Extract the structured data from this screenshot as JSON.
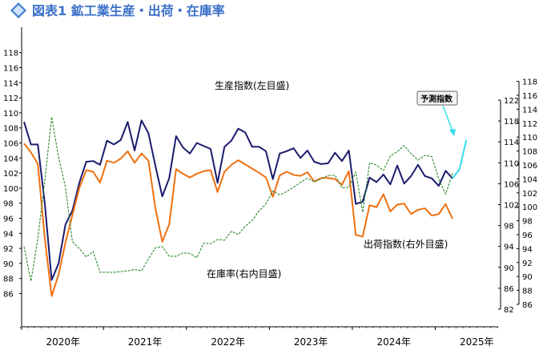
{
  "header": {
    "title": "図表1 鉱工業生産・出荷・在庫率"
  },
  "chart_data": {
    "type": "line",
    "title": "図表1 鉱工業生産・出荷・在庫率",
    "x_labels": [
      "2020年",
      "2021年",
      "2022年",
      "2023年",
      "2024年",
      "2025年"
    ],
    "axes": {
      "left": {
        "min": 84,
        "max": 118,
        "ticks": [
          86,
          88,
          90,
          92,
          94,
          96,
          98,
          100,
          102,
          104,
          106,
          108,
          110,
          112,
          114,
          116,
          118
        ]
      },
      "right_outer": {
        "label": "右外目盛",
        "min": 82,
        "max": 122,
        "ticks": [
          82,
          86,
          90,
          94,
          98,
          102,
          106,
          110,
          114,
          118,
          122
        ]
      },
      "right_inner": {
        "label": "右内目盛",
        "min": 86,
        "max": 118,
        "ticks": [
          86,
          88,
          90,
          92,
          94,
          96,
          98,
          100,
          102,
          104,
          106,
          108,
          110,
          112,
          114,
          116,
          118
        ]
      }
    },
    "series": [
      {
        "name": "生産指数(左目盛)",
        "color": "#1b1b6e",
        "axis": "left",
        "start_month_index": 0,
        "values": [
          108.8,
          105.8,
          105.8,
          98.0,
          87.8,
          90.0,
          95.2,
          97.0,
          100.7,
          103.5,
          103.6,
          103.1,
          106.3,
          105.8,
          106.4,
          108.8,
          105.0,
          109.0,
          107.3,
          103.0,
          98.9,
          101.3,
          106.9,
          105.4,
          104.6,
          106.0,
          105.6,
          105.2,
          100.7,
          105.5,
          106.3,
          107.9,
          107.4,
          105.5,
          105.5,
          104.9,
          101.2,
          104.6,
          104.9,
          105.3,
          104.0,
          105.0,
          103.5,
          103.2,
          103.3,
          104.7,
          103.6,
          105.0,
          97.9,
          98.2,
          101.4,
          100.8,
          101.8,
          100.5,
          103.0,
          100.6,
          101.6,
          103.1,
          101.6,
          101.3,
          100.3,
          102.3,
          101.3
        ]
      },
      {
        "name": "予測指数",
        "color": "#33ddee",
        "axis": "left",
        "start_month_index": 62,
        "values": [
          101.3,
          102.5,
          106.4
        ]
      },
      {
        "name": "出荷指数(右外目盛)",
        "color": "#f07010",
        "axis": "right_outer",
        "start_month_index": 0,
        "values": [
          113.7,
          112.0,
          109.8,
          95.6,
          84.5,
          88.6,
          94.8,
          100.0,
          105.2,
          108.6,
          108.3,
          106.2,
          110.4,
          110.0,
          110.8,
          112.2,
          110.0,
          111.8,
          110.4,
          101.4,
          94.9,
          98.2,
          108.8,
          107.9,
          107.2,
          107.9,
          108.4,
          108.6,
          104.4,
          108.3,
          109.6,
          110.5,
          109.7,
          108.9,
          108.1,
          107.2,
          103.5,
          107.6,
          108.3,
          107.7,
          107.5,
          108.2,
          106.4,
          107.1,
          107.1,
          106.9,
          105.8,
          108.4,
          96.2,
          95.9,
          101.9,
          101.5,
          104.0,
          100.7,
          102.0,
          102.2,
          100.2,
          101.0,
          101.3,
          99.9,
          100.2,
          102.1,
          99.3
        ]
      },
      {
        "name": "在庫率(右内目盛)",
        "color": "#2e8a2e",
        "axis": "right_inner",
        "start_month_index": 0,
        "values": [
          94.3,
          89.3,
          95.5,
          103.7,
          112.9,
          107.1,
          102.8,
          95.0,
          94.0,
          92.8,
          93.6,
          90.6,
          90.6,
          90.6,
          90.7,
          90.8,
          91.0,
          90.8,
          92.5,
          94.1,
          94.3,
          92.9,
          92.9,
          93.4,
          93.3,
          92.7,
          94.8,
          94.7,
          95.3,
          95.2,
          96.5,
          96.0,
          97.2,
          98.0,
          99.4,
          100.4,
          102.3,
          101.7,
          102.2,
          102.8,
          103.5,
          104.1,
          103.6,
          104.0,
          104.5,
          104.5,
          102.7,
          102.8,
          105.0,
          99.2,
          106.3,
          106.0,
          105.2,
          107.3,
          107.9,
          108.8,
          107.6,
          106.7,
          107.4,
          107.2,
          104.0,
          101.8,
          104.8
        ]
      }
    ],
    "annotations": [
      {
        "text": "生産指数(左目盛)"
      },
      {
        "text": "出荷指数(右外目盛)"
      },
      {
        "text": "在庫率(右内目盛)"
      },
      {
        "text": "予測指数"
      }
    ],
    "grid": false,
    "legend": "none"
  }
}
